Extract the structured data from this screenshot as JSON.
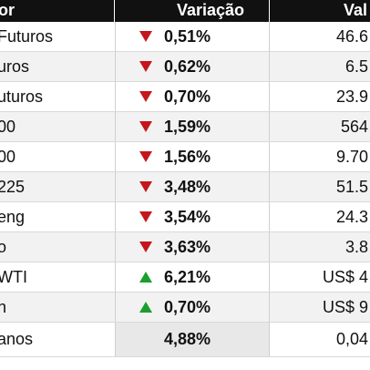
{
  "header": {
    "col_indicator": "dor",
    "col_change": "Variação",
    "col_value": "Val"
  },
  "colors": {
    "down": "#c4161c",
    "up": "#1a9e2e",
    "header_bg": "#111111"
  },
  "rows": [
    {
      "name": "Futuros",
      "change": "0,51%",
      "direction": "down",
      "value": "46.6"
    },
    {
      "name": "uros",
      "change": "0,62%",
      "direction": "down",
      "value": "6.5"
    },
    {
      "name": "uturos",
      "change": "0,70%",
      "direction": "down",
      "value": "23.9"
    },
    {
      "name": "00",
      "change": "1,59%",
      "direction": "down",
      "value": "564"
    },
    {
      "name": "00",
      "change": "1,56%",
      "direction": "down",
      "value": "9.70"
    },
    {
      "name": "225",
      "change": "3,48%",
      "direction": "down",
      "value": "51.5"
    },
    {
      "name": "eng",
      "change": "3,54%",
      "direction": "down",
      "value": "24.3"
    },
    {
      "name": "o",
      "change": "3,63%",
      "direction": "down",
      "value": "3.8"
    },
    {
      "name": "WTI",
      "change": "6,21%",
      "direction": "up",
      "value": "US$ 4"
    },
    {
      "name": "n",
      "change": "0,70%",
      "direction": "up",
      "value": "US$ 9"
    },
    {
      "name": "anos",
      "change": "4,88%",
      "direction": "none",
      "value": "0,04"
    }
  ]
}
